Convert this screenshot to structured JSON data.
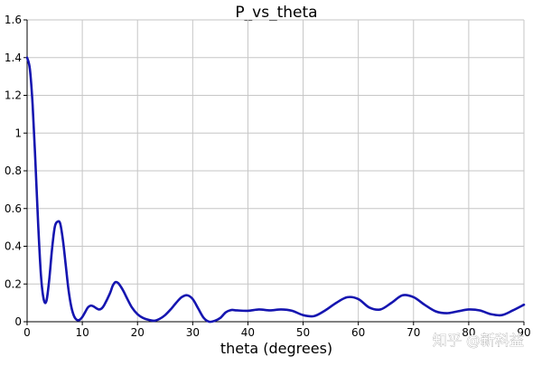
{
  "chart_data": {
    "type": "line",
    "title": "P_vs_theta",
    "xlabel": "theta (degrees)",
    "ylabel": "",
    "xlim": [
      0,
      90
    ],
    "ylim": [
      0,
      1.6
    ],
    "grid": true,
    "legend": "none",
    "xticks": [
      {
        "value": 0,
        "label": "0"
      },
      {
        "value": 10,
        "label": "10"
      },
      {
        "value": 20,
        "label": "20"
      },
      {
        "value": 30,
        "label": "30"
      },
      {
        "value": 40,
        "label": "40"
      },
      {
        "value": 50,
        "label": "50"
      },
      {
        "value": 60,
        "label": "60"
      },
      {
        "value": 70,
        "label": "70"
      },
      {
        "value": 80,
        "label": "80"
      },
      {
        "value": 90,
        "label": "90"
      }
    ],
    "yticks": [
      {
        "value": 0,
        "label": "0"
      },
      {
        "value": 0.2,
        "label": "0.2"
      },
      {
        "value": 0.4,
        "label": "0.4"
      },
      {
        "value": 0.6,
        "label": "0.6"
      },
      {
        "value": 0.8,
        "label": "0.8"
      },
      {
        "value": 1.0,
        "label": "1"
      },
      {
        "value": 1.2,
        "label": "1.2"
      },
      {
        "value": 1.4,
        "label": "1.4"
      },
      {
        "value": 1.6,
        "label": "1.6"
      }
    ],
    "series": [
      {
        "color": "#1515b0",
        "x": [
          0,
          0.5,
          1,
          1.5,
          2,
          2.5,
          3,
          3.5,
          4,
          4.5,
          5,
          5.5,
          6,
          6.5,
          7,
          7.5,
          8,
          8.5,
          9,
          9.5,
          10,
          10.5,
          11,
          11.5,
          12,
          12.5,
          13,
          13.5,
          14,
          15,
          15.5,
          16,
          16.5,
          17,
          17.5,
          18,
          19,
          20,
          21,
          22,
          23,
          24,
          25,
          26,
          27,
          28,
          29,
          30,
          31,
          32,
          33,
          34,
          35,
          36,
          37,
          38,
          40,
          42,
          44,
          46,
          48,
          50,
          52,
          54,
          56,
          58,
          60,
          62,
          64,
          66,
          68,
          70,
          72,
          74,
          76,
          78,
          80,
          82,
          84,
          86,
          88,
          90
        ],
        "y": [
          1.4,
          1.34,
          1.15,
          0.85,
          0.52,
          0.25,
          0.12,
          0.11,
          0.22,
          0.38,
          0.5,
          0.53,
          0.52,
          0.43,
          0.3,
          0.17,
          0.08,
          0.03,
          0.01,
          0.01,
          0.025,
          0.05,
          0.075,
          0.085,
          0.082,
          0.072,
          0.065,
          0.07,
          0.09,
          0.15,
          0.19,
          0.21,
          0.205,
          0.185,
          0.16,
          0.13,
          0.075,
          0.04,
          0.02,
          0.01,
          0.005,
          0.015,
          0.035,
          0.065,
          0.1,
          0.13,
          0.14,
          0.12,
          0.07,
          0.02,
          0.0,
          0.005,
          0.02,
          0.05,
          0.062,
          0.06,
          0.058,
          0.065,
          0.06,
          0.065,
          0.058,
          0.035,
          0.03,
          0.06,
          0.1,
          0.13,
          0.12,
          0.075,
          0.065,
          0.1,
          0.14,
          0.13,
          0.09,
          0.055,
          0.045,
          0.055,
          0.065,
          0.06,
          0.04,
          0.035,
          0.06,
          0.09
        ]
      }
    ]
  },
  "watermark": {
    "text": "知乎 @新科益"
  }
}
